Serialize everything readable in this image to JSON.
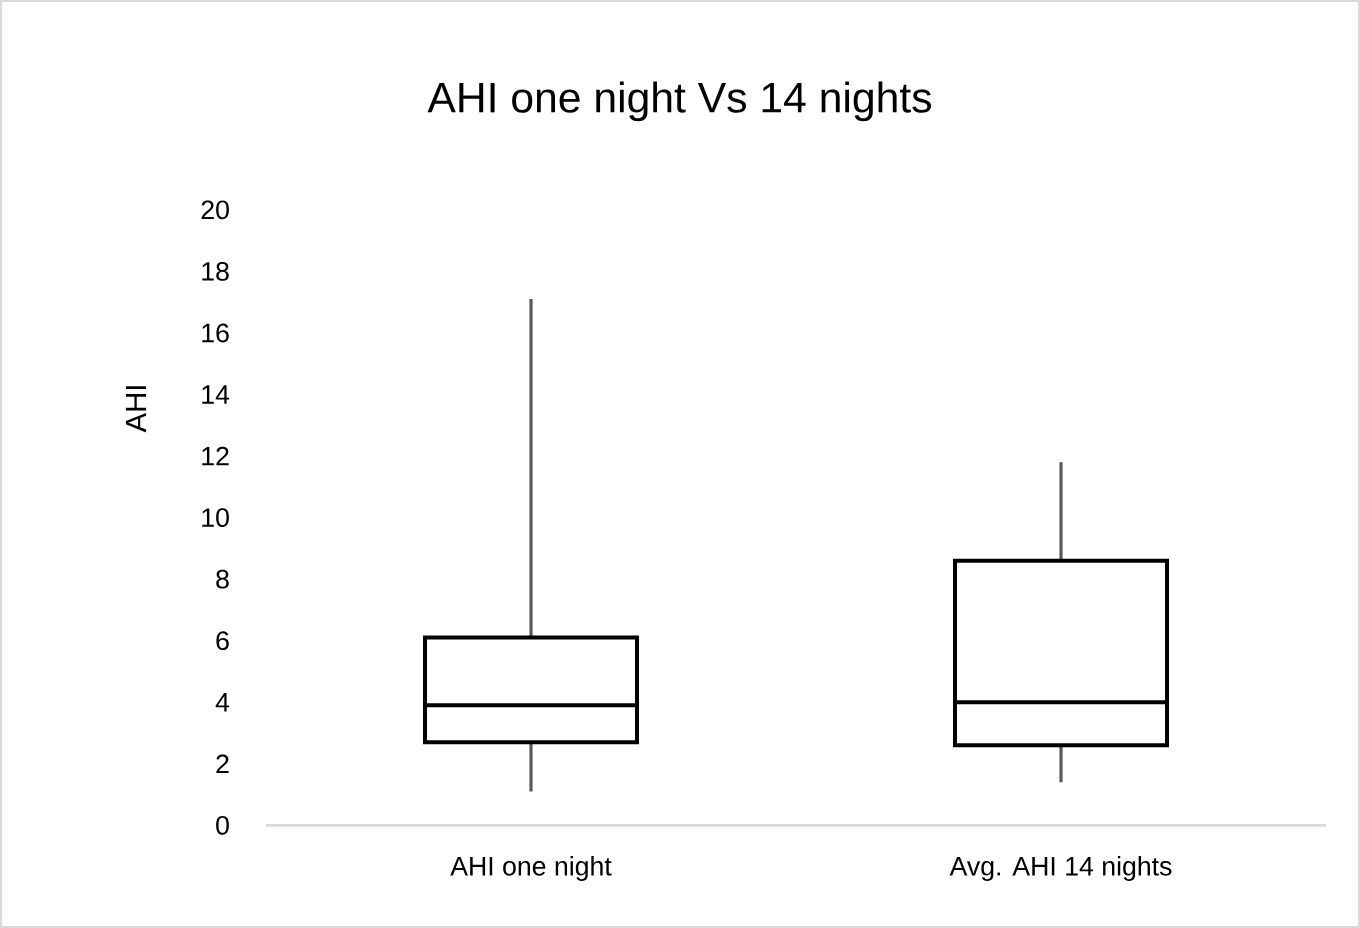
{
  "chart_data": {
    "type": "box",
    "title": "AHI one night Vs 14 nights",
    "ylabel": "AHI",
    "categories": [
      "AHI one night",
      "Avg. AHI 14 nights"
    ],
    "boxes": [
      {
        "low": 1.1,
        "q1": 2.7,
        "median": 3.9,
        "q3": 6.1,
        "high": 17.1
      },
      {
        "low": 1.4,
        "q1": 2.6,
        "median": 4.0,
        "q3": 8.6,
        "high": 11.8
      }
    ],
    "ylim": [
      0,
      20
    ],
    "yticks": [
      0,
      2,
      4,
      6,
      8,
      10,
      12,
      14,
      16,
      18,
      20
    ]
  }
}
